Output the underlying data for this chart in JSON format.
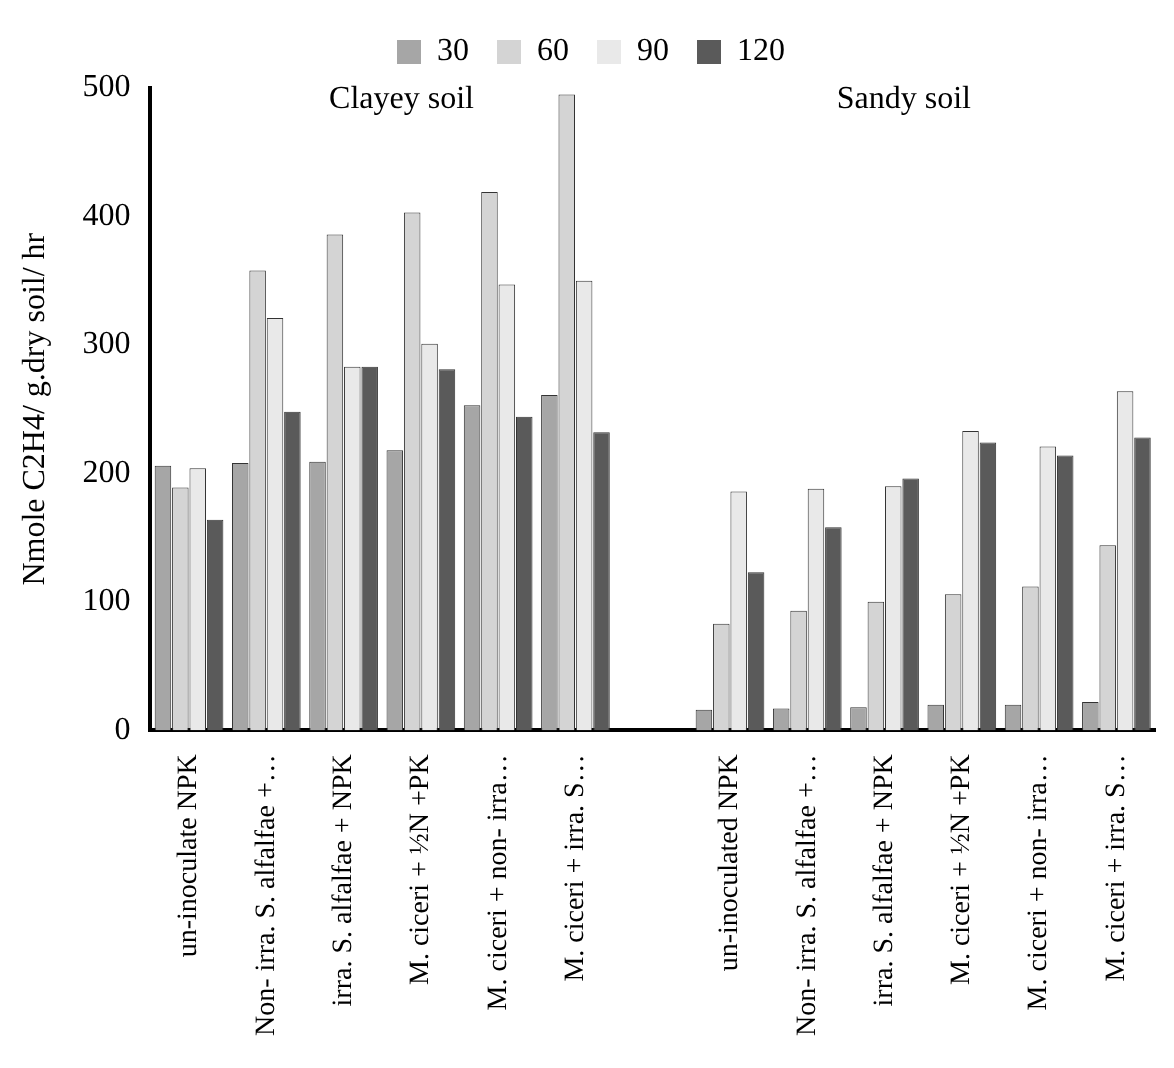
{
  "chart_data": {
    "type": "bar",
    "ylabel": "Nmole C2H4/ g.dry soil/ hr",
    "categories": [
      "un-inoculate NPK",
      "Non- irra. S. alfalfae +…",
      "irra. S. alfalfae + NPK",
      "M. ciceri + ½N +PK",
      "M. ciceri + non- irra…",
      "M. ciceri + irra. S…",
      null,
      "un-inoculated NPK",
      "Non- irra. S. alfalfae +…",
      "irra. S. alfalfae + NPK",
      "M. ciceri + ½N +PK",
      "M. ciceri + non- irra…",
      "M. ciceri + irra. S…"
    ],
    "series": [
      {
        "name": "30",
        "color": "#a6a6a6",
        "values": [
          206,
          208,
          209,
          218,
          253,
          261,
          null,
          16,
          17,
          18,
          20,
          20,
          22
        ]
      },
      {
        "name": "60",
        "color": "#d4d4d4",
        "values": [
          189,
          358,
          386,
          403,
          419,
          495,
          null,
          83,
          93,
          100,
          106,
          112,
          144
        ]
      },
      {
        "name": "90",
        "color": "#e9e9e9",
        "values": [
          204,
          321,
          283,
          301,
          347,
          350,
          null,
          186,
          188,
          190,
          233,
          221,
          264
        ]
      },
      {
        "name": "120",
        "color": "#5a5a5a",
        "values": [
          164,
          248,
          283,
          281,
          244,
          232,
          null,
          123,
          158,
          196,
          224,
          214,
          228
        ]
      }
    ],
    "ylim": [
      0,
      500
    ],
    "yticks": [
      0,
      100,
      200,
      300,
      400,
      500
    ],
    "grid": false,
    "legend": "top",
    "annotations": [
      "Clayey soil",
      "Sandy soil"
    ]
  }
}
